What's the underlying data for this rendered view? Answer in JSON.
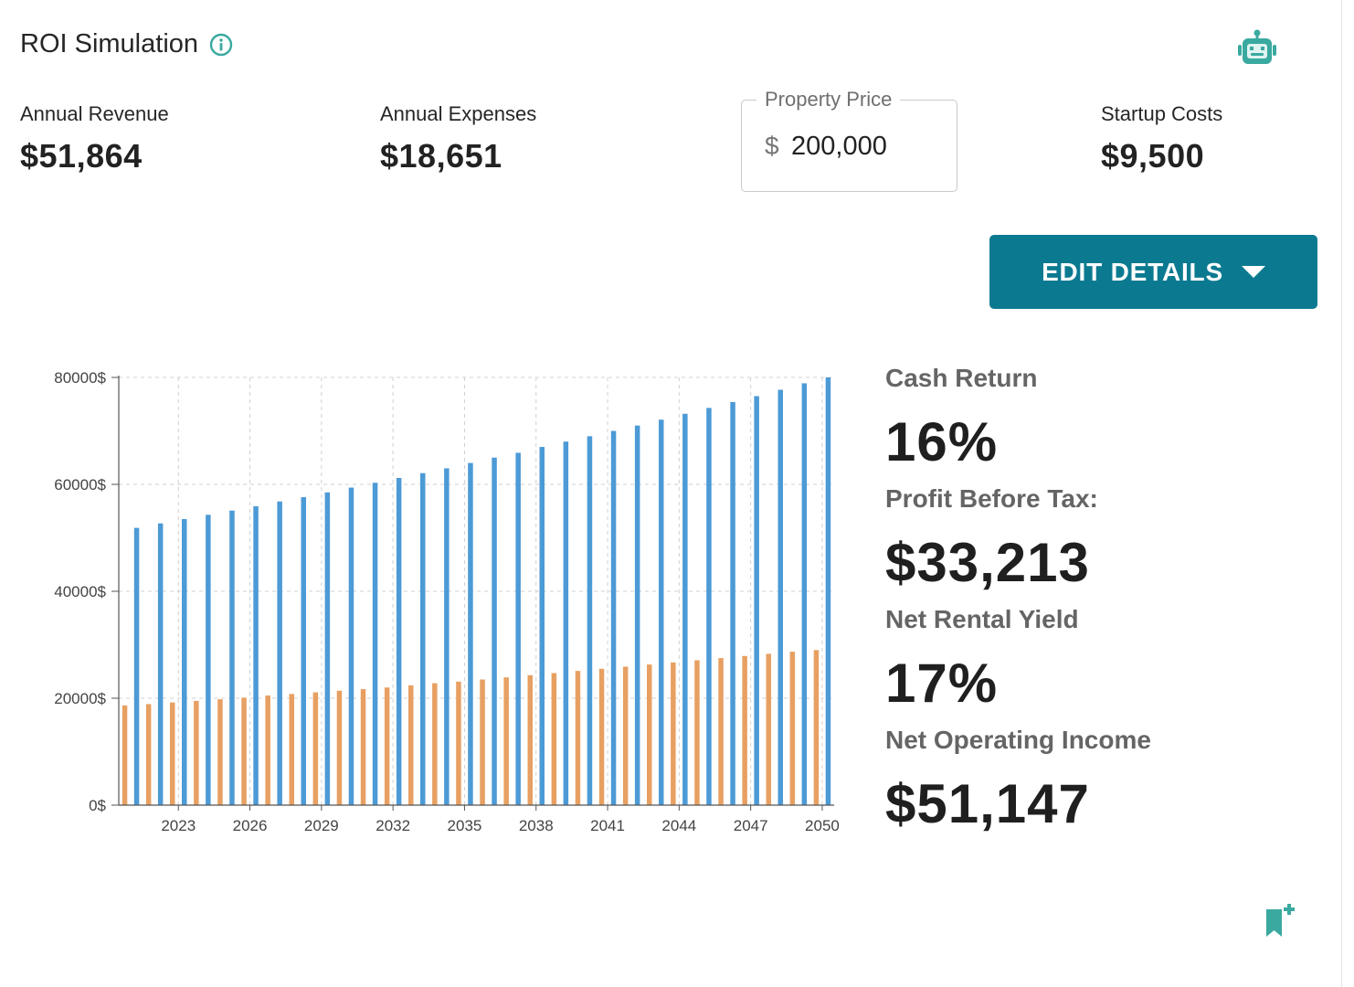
{
  "header": {
    "title": "ROI Simulation",
    "info_icon": "info-circle-icon",
    "bot_icon": "robot-icon"
  },
  "metrics": {
    "annual_revenue": {
      "label": "Annual Revenue",
      "value": "$51,864"
    },
    "annual_expenses": {
      "label": "Annual Expenses",
      "value": "$18,651"
    },
    "property_price": {
      "label": "Property Price",
      "currency": "$",
      "value": "200,000"
    },
    "startup_costs": {
      "label": "Startup Costs",
      "value": "$9,500"
    }
  },
  "edit_button": {
    "label": "EDIT DETAILS",
    "icon": "caret-down-icon"
  },
  "stats": {
    "cash_return": {
      "label": "Cash Return",
      "value": "16%"
    },
    "profit_before_tax": {
      "label": "Profit Before Tax:",
      "value": "$33,213"
    },
    "net_rental_yield": {
      "label": "Net Rental Yield",
      "value": "17%"
    },
    "net_operating_income": {
      "label": "Net Operating Income",
      "value": "$51,147"
    }
  },
  "bookmark_icon": "bookmark-add-icon",
  "colors": {
    "accent": "#0b7a91",
    "icon_teal": "#3aa99f",
    "revenue_bar": "#4c9ad6",
    "expense_bar": "#e7a062"
  },
  "chart_data": {
    "type": "bar",
    "categories": [
      2021,
      2022,
      2023,
      2024,
      2025,
      2026,
      2027,
      2028,
      2029,
      2030,
      2031,
      2032,
      2033,
      2034,
      2035,
      2036,
      2037,
      2038,
      2039,
      2040,
      2041,
      2042,
      2043,
      2044,
      2045,
      2046,
      2047,
      2048,
      2049,
      2050
    ],
    "tick_labels": [
      "2023",
      "2026",
      "2029",
      "2032",
      "2035",
      "2038",
      "2041",
      "2044",
      "2047",
      "2050"
    ],
    "y_tick_labels": [
      "0$",
      "20000$",
      "40000$",
      "60000$",
      "80000$"
    ],
    "y_ticks": [
      0,
      20000,
      40000,
      60000,
      80000
    ],
    "ylim": [
      0,
      80000
    ],
    "grid": true,
    "series": [
      {
        "color": "#e7a062",
        "values": [
          18651,
          18900,
          19200,
          19500,
          19800,
          20100,
          20500,
          20800,
          21100,
          21400,
          21700,
          22000,
          22400,
          22800,
          23100,
          23500,
          23900,
          24300,
          24700,
          25100,
          25500,
          25900,
          26300,
          26700,
          27100,
          27500,
          27900,
          28300,
          28700,
          29000
        ]
      },
      {
        "color": "#4c9ad6",
        "values": [
          51864,
          52700,
          53500,
          54300,
          55100,
          55900,
          56800,
          57600,
          58500,
          59400,
          60300,
          61200,
          62100,
          63000,
          64000,
          65000,
          65900,
          67000,
          68000,
          69000,
          70000,
          71000,
          72100,
          73200,
          74300,
          75400,
          76500,
          77700,
          78900,
          80000
        ]
      }
    ]
  }
}
